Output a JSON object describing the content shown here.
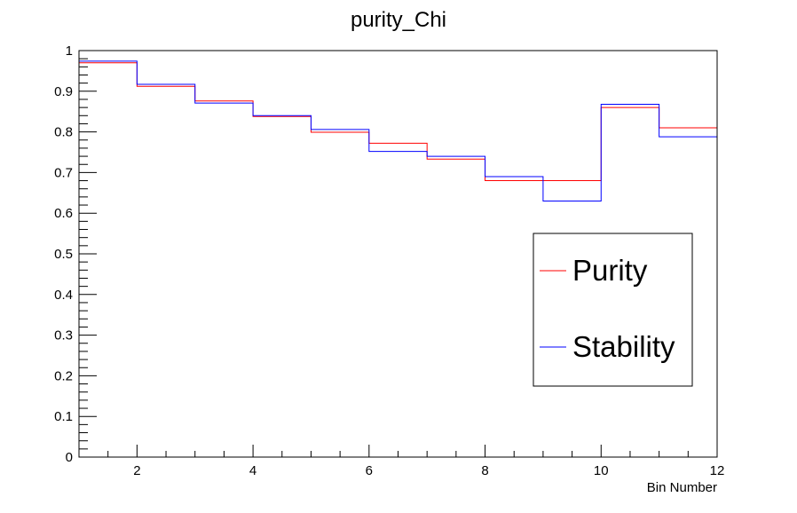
{
  "chart_data": {
    "type": "line",
    "title": "purity_Chi",
    "xlabel": "Bin Number",
    "ylabel": "",
    "xlim": [
      1,
      12
    ],
    "ylim": [
      0,
      1
    ],
    "x_ticks": [
      "2",
      "4",
      "6",
      "8",
      "10",
      "12"
    ],
    "y_ticks": [
      "0",
      "0.1",
      "0.2",
      "0.3",
      "0.4",
      "0.5",
      "0.6",
      "0.7",
      "0.8",
      "0.9",
      "1"
    ],
    "grid": false,
    "legend_placement": "right",
    "bin_edges": [
      1,
      2,
      3,
      4,
      5,
      6,
      7,
      8,
      9,
      10,
      11,
      12
    ],
    "series": [
      {
        "name": "Purity",
        "color": "#ff0000",
        "values": [
          0.97,
          0.912,
          0.876,
          0.838,
          0.799,
          0.772,
          0.733,
          0.68,
          0.68,
          0.86,
          0.81
        ]
      },
      {
        "name": "Stability",
        "color": "#0000ff",
        "values": [
          0.974,
          0.917,
          0.871,
          0.84,
          0.806,
          0.752,
          0.74,
          0.69,
          0.63,
          0.868,
          0.788
        ]
      }
    ]
  }
}
